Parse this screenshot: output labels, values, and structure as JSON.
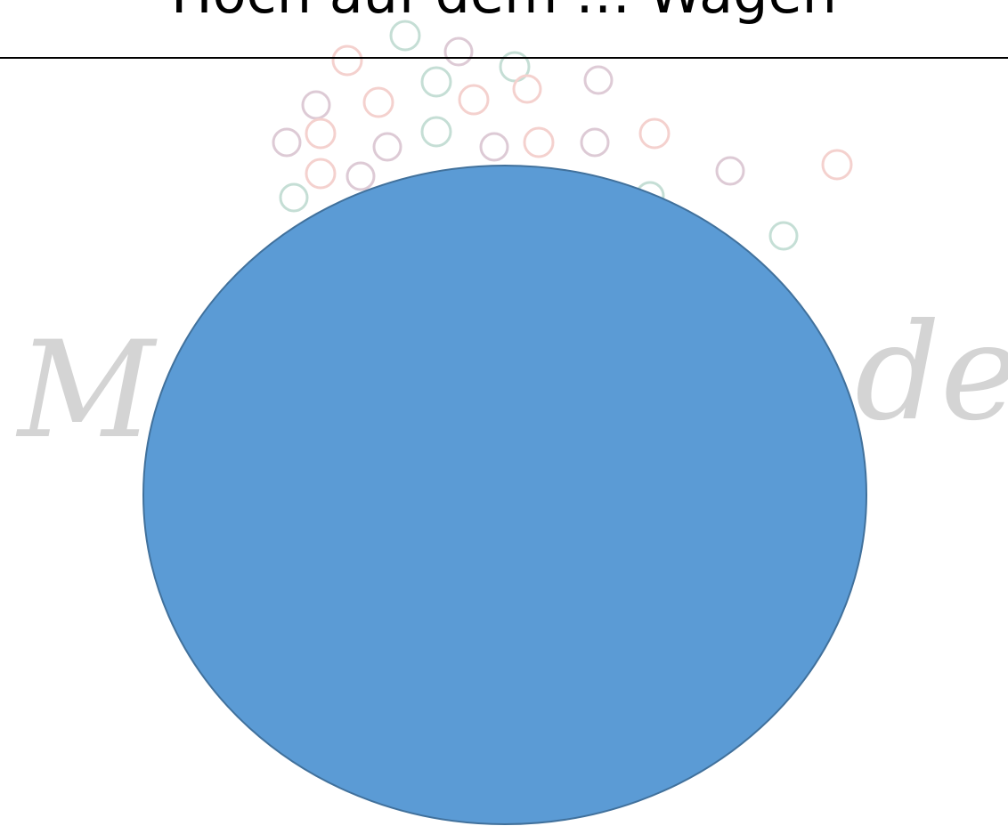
{
  "header": {
    "title": "Hoch auf dem … Wagen"
  },
  "watermark": {
    "left": "Ma",
    "right": "de"
  }
}
